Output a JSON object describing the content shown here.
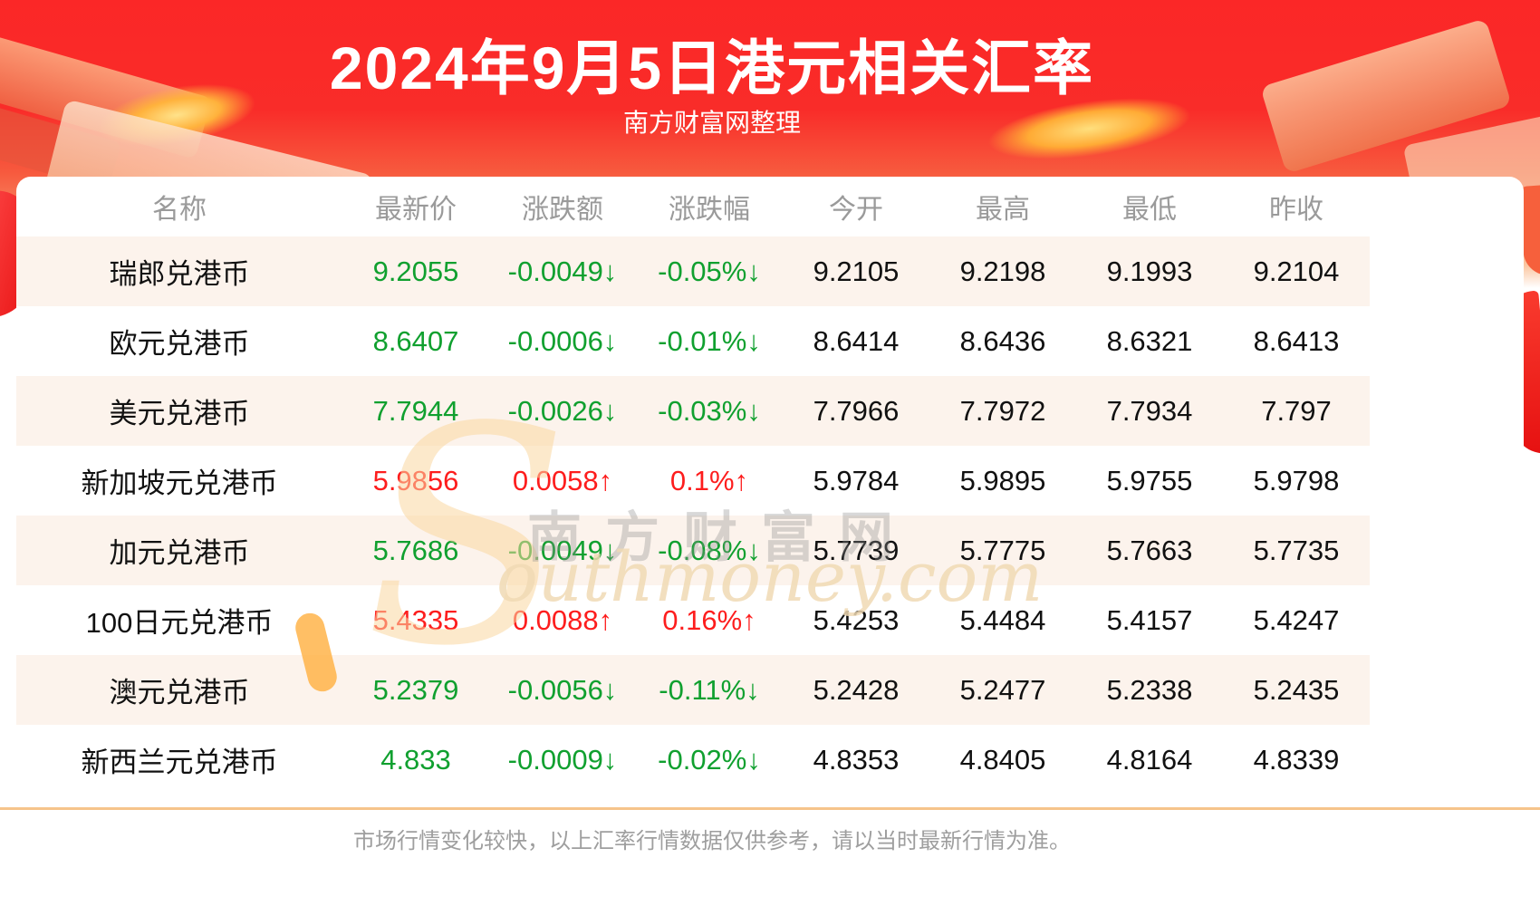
{
  "hero": {
    "title": "2024年9月5日港元相关汇率",
    "subtitle": "南方财富网整理"
  },
  "table": {
    "columns": [
      "名称",
      "最新价",
      "涨跌额",
      "涨跌幅",
      "今开",
      "最高",
      "最低",
      "昨收"
    ],
    "rows": [
      {
        "name": "瑞郎兑港币",
        "last": "9.2055",
        "change": "-0.0049↓",
        "change_pct": "-0.05%↓",
        "open": "9.2105",
        "high": "9.2198",
        "low": "9.1993",
        "prev_close": "9.2104",
        "direction": "down"
      },
      {
        "name": "欧元兑港币",
        "last": "8.6407",
        "change": "-0.0006↓",
        "change_pct": "-0.01%↓",
        "open": "8.6414",
        "high": "8.6436",
        "low": "8.6321",
        "prev_close": "8.6413",
        "direction": "down"
      },
      {
        "name": "美元兑港币",
        "last": "7.7944",
        "change": "-0.0026↓",
        "change_pct": "-0.03%↓",
        "open": "7.7966",
        "high": "7.7972",
        "low": "7.7934",
        "prev_close": "7.797",
        "direction": "down"
      },
      {
        "name": "新加坡元兑港币",
        "last": "5.9856",
        "change": "0.0058↑",
        "change_pct": "0.1%↑",
        "open": "5.9784",
        "high": "5.9895",
        "low": "5.9755",
        "prev_close": "5.9798",
        "direction": "up"
      },
      {
        "name": "加元兑港币",
        "last": "5.7686",
        "change": "-0.0049↓",
        "change_pct": "-0.08%↓",
        "open": "5.7739",
        "high": "5.7775",
        "low": "5.7663",
        "prev_close": "5.7735",
        "direction": "down"
      },
      {
        "name": "100日元兑港币",
        "last": "5.4335",
        "change": "0.0088↑",
        "change_pct": "0.16%↑",
        "open": "5.4253",
        "high": "5.4484",
        "low": "5.4157",
        "prev_close": "5.4247",
        "direction": "up"
      },
      {
        "name": "澳元兑港币",
        "last": "5.2379",
        "change": "-0.0056↓",
        "change_pct": "-0.11%↓",
        "open": "5.2428",
        "high": "5.2477",
        "low": "5.2338",
        "prev_close": "5.2435",
        "direction": "down"
      },
      {
        "name": "新西兰元兑港币",
        "last": "4.833",
        "change": "-0.0009↓",
        "change_pct": "-0.02%↓",
        "open": "4.8353",
        "high": "4.8405",
        "low": "4.8164",
        "prev_close": "4.8339",
        "direction": "down"
      }
    ]
  },
  "watermark": {
    "cn": "南方财富网",
    "en_initial": "S",
    "en_rest": "outhmoney.com"
  },
  "footer": {
    "disclaimer": "市场行情变化较快，以上汇率行情数据仅供参考，请以当时最新行情为准。"
  },
  "colors": {
    "up_red": "#fd1d1d",
    "down_green": "#10a02f",
    "row_alt": "#fcf3ec",
    "divider": "#f6c48b",
    "hero_red": "#fa2626"
  },
  "chart_data": {
    "type": "table",
    "title": "2024年9月5日港元相关汇率",
    "subtitle": "南方财富网整理",
    "columns": [
      "名称",
      "最新价",
      "涨跌额",
      "涨跌幅",
      "今开",
      "最高",
      "最低",
      "昨收"
    ],
    "rows": [
      [
        "瑞郎兑港币",
        9.2055,
        -0.0049,
        "-0.05%",
        9.2105,
        9.2198,
        9.1993,
        9.2104
      ],
      [
        "欧元兑港币",
        8.6407,
        -0.0006,
        "-0.01%",
        8.6414,
        8.6436,
        8.6321,
        8.6413
      ],
      [
        "美元兑港币",
        7.7944,
        -0.0026,
        "-0.03%",
        7.7966,
        7.7972,
        7.7934,
        7.797
      ],
      [
        "新加坡元兑港币",
        5.9856,
        0.0058,
        "0.1%",
        5.9784,
        5.9895,
        5.9755,
        5.9798
      ],
      [
        "加元兑港币",
        5.7686,
        -0.0049,
        "-0.08%",
        5.7739,
        5.7775,
        5.7663,
        5.7735
      ],
      [
        "100日元兑港币",
        5.4335,
        0.0088,
        "0.16%",
        5.4253,
        5.4484,
        5.4157,
        5.4247
      ],
      [
        "澳元兑港币",
        5.2379,
        -0.0056,
        "-0.11%",
        5.2428,
        5.2477,
        5.2338,
        5.2435
      ],
      [
        "新西兰元兑港币",
        4.833,
        -0.0009,
        "-0.02%",
        4.8353,
        4.8405,
        4.8164,
        4.8339
      ]
    ],
    "footnote": "市场行情变化较快，以上汇率行情数据仅供参考，请以当时最新行情为准。"
  }
}
